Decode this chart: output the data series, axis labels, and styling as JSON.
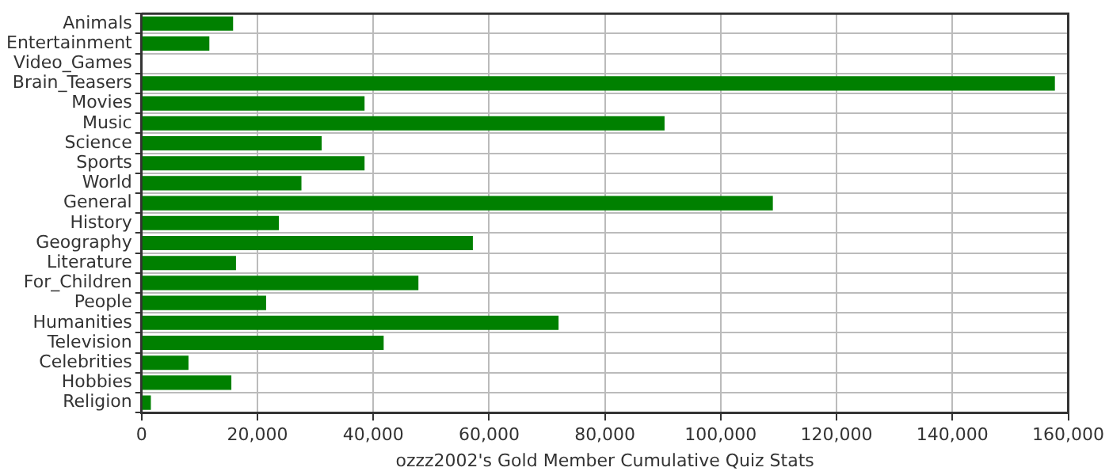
{
  "chart_data": {
    "type": "bar",
    "orientation": "horizontal",
    "xlabel": "ozzz2002's Gold Member Cumulative Quiz Stats",
    "categories": [
      "Animals",
      "Entertainment",
      "Video_Games",
      "Brain_Teasers",
      "Movies",
      "Music",
      "Science",
      "Sports",
      "World",
      "General",
      "History",
      "Geography",
      "Literature",
      "For_Children",
      "People",
      "Humanities",
      "Television",
      "Celebrities",
      "Hobbies",
      "Religion"
    ],
    "values": [
      15800,
      11700,
      0,
      157700,
      38500,
      90300,
      31100,
      38500,
      27600,
      109000,
      23700,
      57200,
      16300,
      47800,
      21500,
      72000,
      41800,
      8100,
      15500,
      1600
    ],
    "color": "#008000",
    "xlim": [
      0,
      160000
    ],
    "xticks": [
      0,
      {
        "value": 20000,
        "label": "20,000"
      },
      {
        "value": 40000,
        "label": "40,000"
      },
      {
        "value": 60000,
        "label": "60,000"
      },
      {
        "value": 80000,
        "label": "80,000"
      },
      {
        "value": 100000,
        "label": "100,000"
      },
      {
        "value": 120000,
        "label": "120,000"
      },
      {
        "value": 140000,
        "label": "140,000"
      },
      {
        "value": 160000,
        "label": "160,000"
      }
    ],
    "grid": true,
    "legend": false
  }
}
